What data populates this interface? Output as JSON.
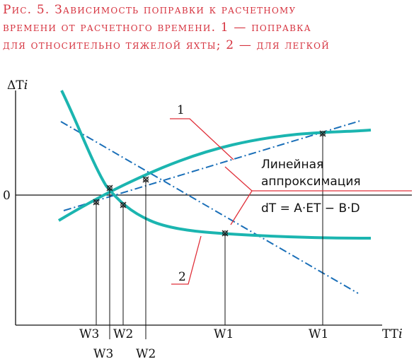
{
  "caption": {
    "line1": "Рис. 5. Зависимость поправки к расчетному",
    "line2": "времени от расчетного времени. 1 — поправка",
    "line3": "для относительно тяжелой яхты; 2 — для легкой"
  },
  "axes": {
    "y_label": "ΔT",
    "y_label_sub": "i",
    "x_label": "TT",
    "x_label_sub": "i",
    "zero_label": "0"
  },
  "curves": {
    "curve1_label": "1",
    "curve2_label": "2",
    "curve_color": "#1bb5b0",
    "line_color": "#1a6fb8",
    "leader_color": "#e0303a"
  },
  "annotation": {
    "line1": "Линейная",
    "line2": "аппроксимация",
    "formula": "dT = A·ET − B·D"
  },
  "ticks": {
    "top": [
      "W3",
      "W2",
      "W1",
      "W1"
    ],
    "bottom": [
      "W3",
      "W2"
    ]
  }
}
